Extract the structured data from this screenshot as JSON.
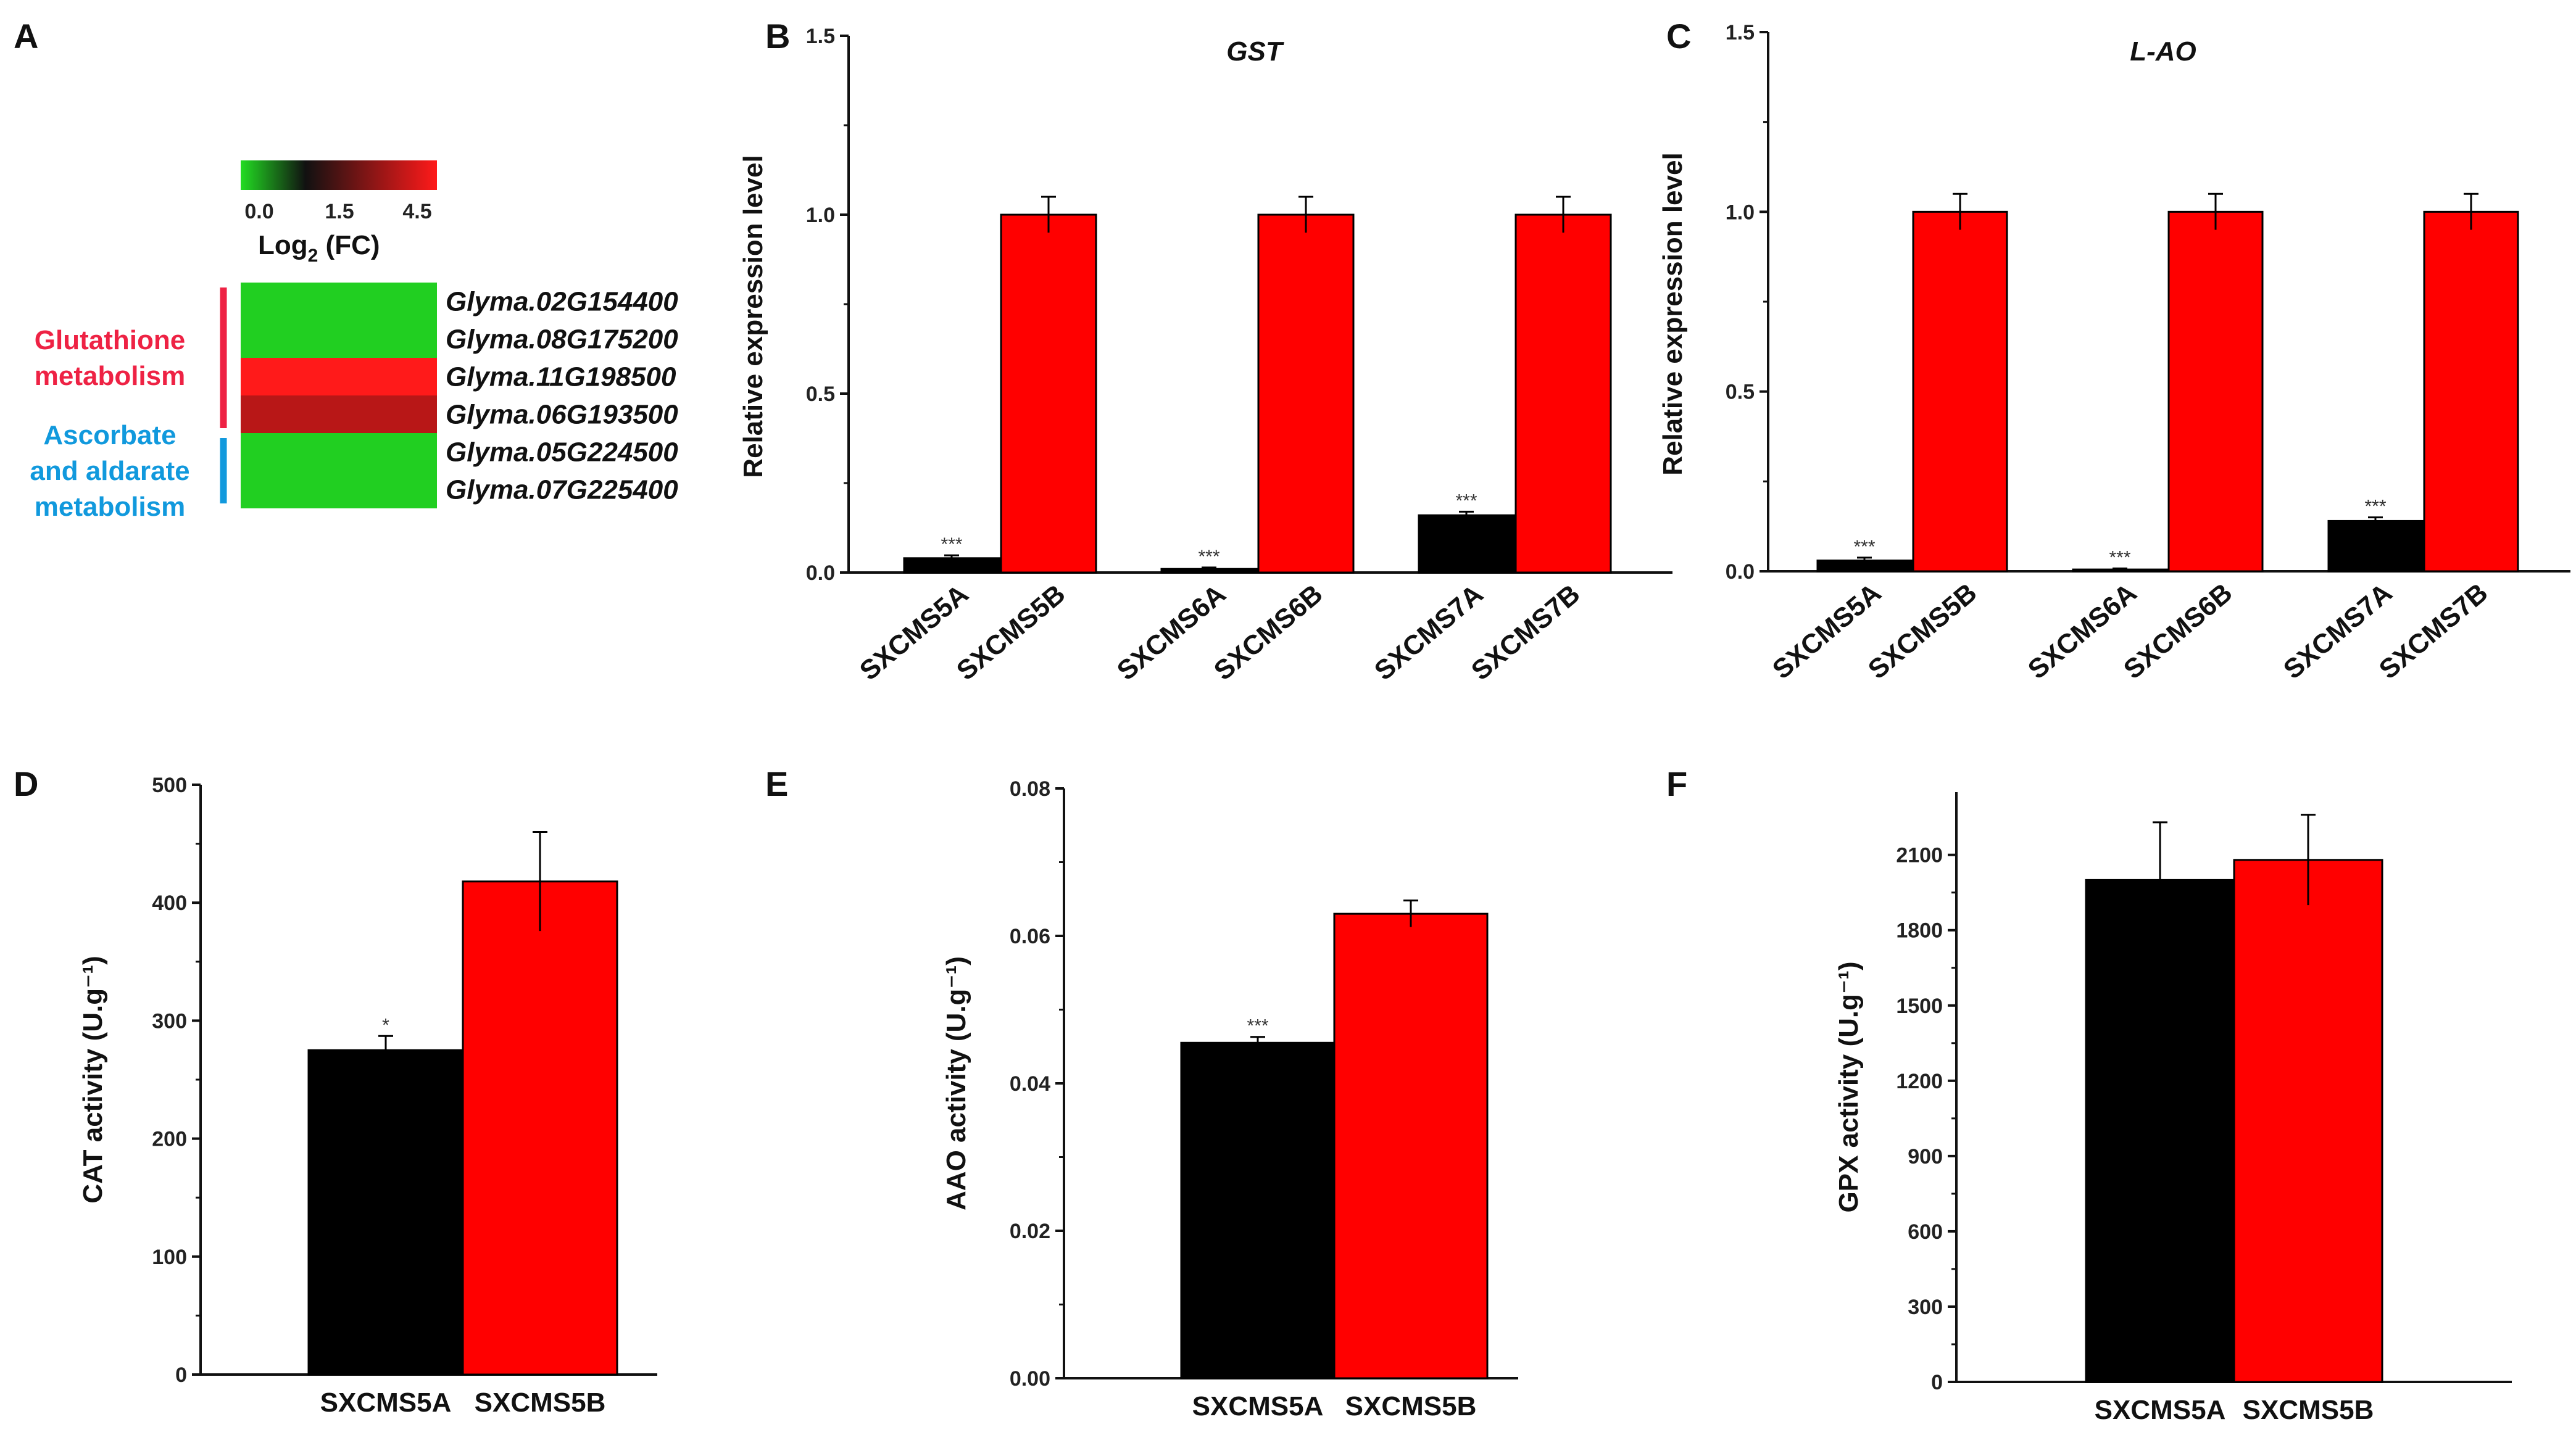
{
  "heatmap": {
    "panel_label": "A",
    "scale_ticks": [
      "0.0",
      "1.5",
      "4.5"
    ],
    "scale_title_main": "Log",
    "scale_title_sub": "2",
    "scale_title_rest": " (FC)",
    "colors": {
      "low": "#22dd22",
      "mid": "#111111",
      "high": "#ff1a1a"
    },
    "genes": [
      {
        "name": "Glyma.02G154400",
        "value": 0.1
      },
      {
        "name": "Glyma.08G175200",
        "value": 0.1
      },
      {
        "name": "Glyma.11G198500",
        "value": 4.5
      },
      {
        "name": "Glyma.06G193500",
        "value": 3.6
      },
      {
        "name": "Glyma.05G224500",
        "value": 0.1
      },
      {
        "name": "Glyma.07G225400",
        "value": 0.1
      }
    ],
    "groups": [
      {
        "lines": [
          "Glutathione",
          "metabolism"
        ],
        "color": "#ee2244",
        "rows": [
          0,
          3
        ]
      },
      {
        "lines": [
          "Ascorbate",
          "and aldarate",
          "metabolism"
        ],
        "color": "#1199dd",
        "rows": [
          4,
          5
        ]
      }
    ]
  },
  "chart_data": [
    {
      "panel_label": "B",
      "type": "bar",
      "title": "GST",
      "ylabel": "Relative expression level",
      "xlabel": "",
      "ylim": [
        0,
        1.5
      ],
      "yticks": [
        "0.0",
        "0.5",
        "1.0",
        "1.5"
      ],
      "ytick_values": [
        0,
        0.5,
        1.0,
        1.5
      ],
      "categories": [
        "SXCMS5A",
        "SXCMS5B",
        "SXCMS6A",
        "SXCMS6B",
        "SXCMS7A",
        "SXCMS7B"
      ],
      "values": [
        0.04,
        1.0,
        0.01,
        1.0,
        0.16,
        1.0
      ],
      "errors": [
        0.008,
        0.05,
        0.004,
        0.05,
        0.01,
        0.05
      ],
      "significance": [
        "***",
        "",
        "***",
        "",
        "***",
        ""
      ],
      "bar_colors": [
        "#000000",
        "#ff0000",
        "#000000",
        "#ff0000",
        "#000000",
        "#ff0000"
      ]
    },
    {
      "panel_label": "C",
      "type": "bar",
      "title": "L-AO",
      "ylabel": "Relative expression level",
      "xlabel": "",
      "ylim": [
        0,
        1.5
      ],
      "yticks": [
        "0.0",
        "0.5",
        "1.0",
        "1.5"
      ],
      "ytick_values": [
        0,
        0.5,
        1.0,
        1.5
      ],
      "categories": [
        "SXCMS5A",
        "SXCMS5B",
        "SXCMS6A",
        "SXCMS6B",
        "SXCMS7A",
        "SXCMS7B"
      ],
      "values": [
        0.03,
        1.0,
        0.005,
        1.0,
        0.14,
        1.0
      ],
      "errors": [
        0.008,
        0.05,
        0.003,
        0.05,
        0.01,
        0.05
      ],
      "significance": [
        "***",
        "",
        "***",
        "",
        "***",
        ""
      ],
      "bar_colors": [
        "#000000",
        "#ff0000",
        "#000000",
        "#ff0000",
        "#000000",
        "#ff0000"
      ]
    },
    {
      "panel_label": "D",
      "type": "bar",
      "title": "",
      "ylabel": "CAT activity (U.g⁻¹)",
      "xlabel": "",
      "ylim": [
        0,
        500
      ],
      "yticks": [
        "0",
        "100",
        "200",
        "300",
        "400",
        "500"
      ],
      "ytick_values": [
        0,
        100,
        200,
        300,
        400,
        500
      ],
      "categories": [
        "SXCMS5A",
        "SXCMS5B"
      ],
      "values": [
        275,
        418
      ],
      "errors": [
        12,
        42
      ],
      "significance": [
        "*",
        ""
      ],
      "bar_colors": [
        "#000000",
        "#ff0000"
      ]
    },
    {
      "panel_label": "E",
      "type": "bar",
      "title": "",
      "ylabel": "AAO activity (U.g⁻¹)",
      "xlabel": "",
      "ylim": [
        0,
        0.08
      ],
      "yticks": [
        "0.00",
        "0.02",
        "0.04",
        "0.06",
        "0.08"
      ],
      "ytick_values": [
        0,
        0.02,
        0.04,
        0.06,
        0.08
      ],
      "categories": [
        "SXCMS5A",
        "SXCMS5B"
      ],
      "values": [
        0.0455,
        0.063
      ],
      "errors": [
        0.0008,
        0.0018
      ],
      "significance": [
        "***",
        ""
      ],
      "bar_colors": [
        "#000000",
        "#ff0000"
      ]
    },
    {
      "panel_label": "F",
      "type": "bar",
      "title": "",
      "ylabel": "GPX activity (U.g⁻¹)",
      "xlabel": "",
      "ylim": [
        0,
        2350
      ],
      "yticks": [
        "0",
        "300",
        "600",
        "900",
        "1200",
        "1500",
        "1800",
        "2100"
      ],
      "ytick_values": [
        0,
        300,
        600,
        900,
        1200,
        1500,
        1800,
        2100
      ],
      "categories": [
        "SXCMS5A",
        "SXCMS5B"
      ],
      "values": [
        2000,
        2080
      ],
      "errors": [
        230,
        180
      ],
      "significance": [
        "",
        ""
      ],
      "bar_colors": [
        "#000000",
        "#ff0000"
      ]
    }
  ]
}
